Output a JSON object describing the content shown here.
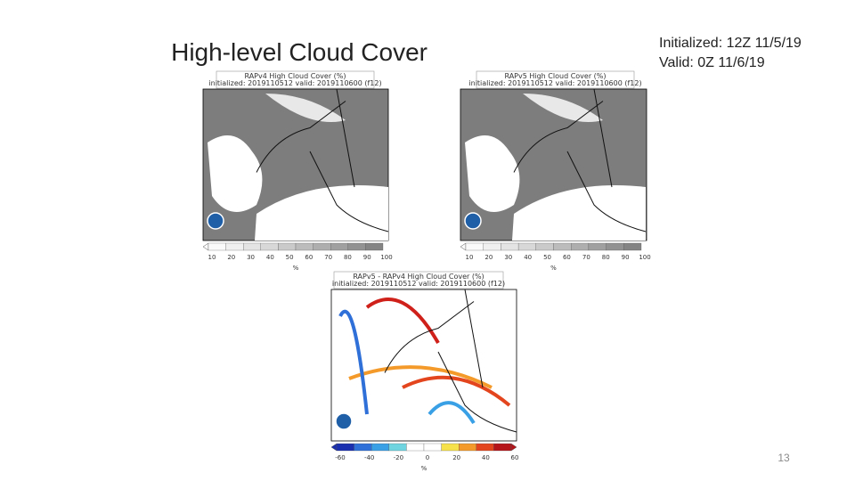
{
  "slide": {
    "title": "High-level Cloud Cover",
    "info": [
      "Initialized: 12Z 11/5/19",
      "Valid: 0Z 11/6/19"
    ],
    "page_number": "13"
  },
  "panels": [
    {
      "header": [
        "RAPv4 High Cloud Cover (%)",
        "initialized: 2019110512 valid: 2019110600 (f12)"
      ],
      "colorbar_ticks": [
        10,
        20,
        30,
        40,
        50,
        60,
        70,
        80,
        90,
        100
      ],
      "unit": "%"
    },
    {
      "header": [
        "RAPv5 High Cloud Cover (%)",
        "initialized: 2019110512 valid: 2019110600 (f12)"
      ],
      "colorbar_ticks": [
        10,
        20,
        30,
        40,
        50,
        60,
        70,
        80,
        90,
        100
      ],
      "unit": "%"
    },
    {
      "header": [
        "RAPv5 - RAPv4 High Cloud Cover (%)",
        "initialized: 2019110512 valid: 2019110600 (f12)"
      ],
      "colorbar_ticks": [
        -60,
        -40,
        -20,
        0,
        20,
        40,
        60
      ],
      "unit": "%"
    }
  ]
}
